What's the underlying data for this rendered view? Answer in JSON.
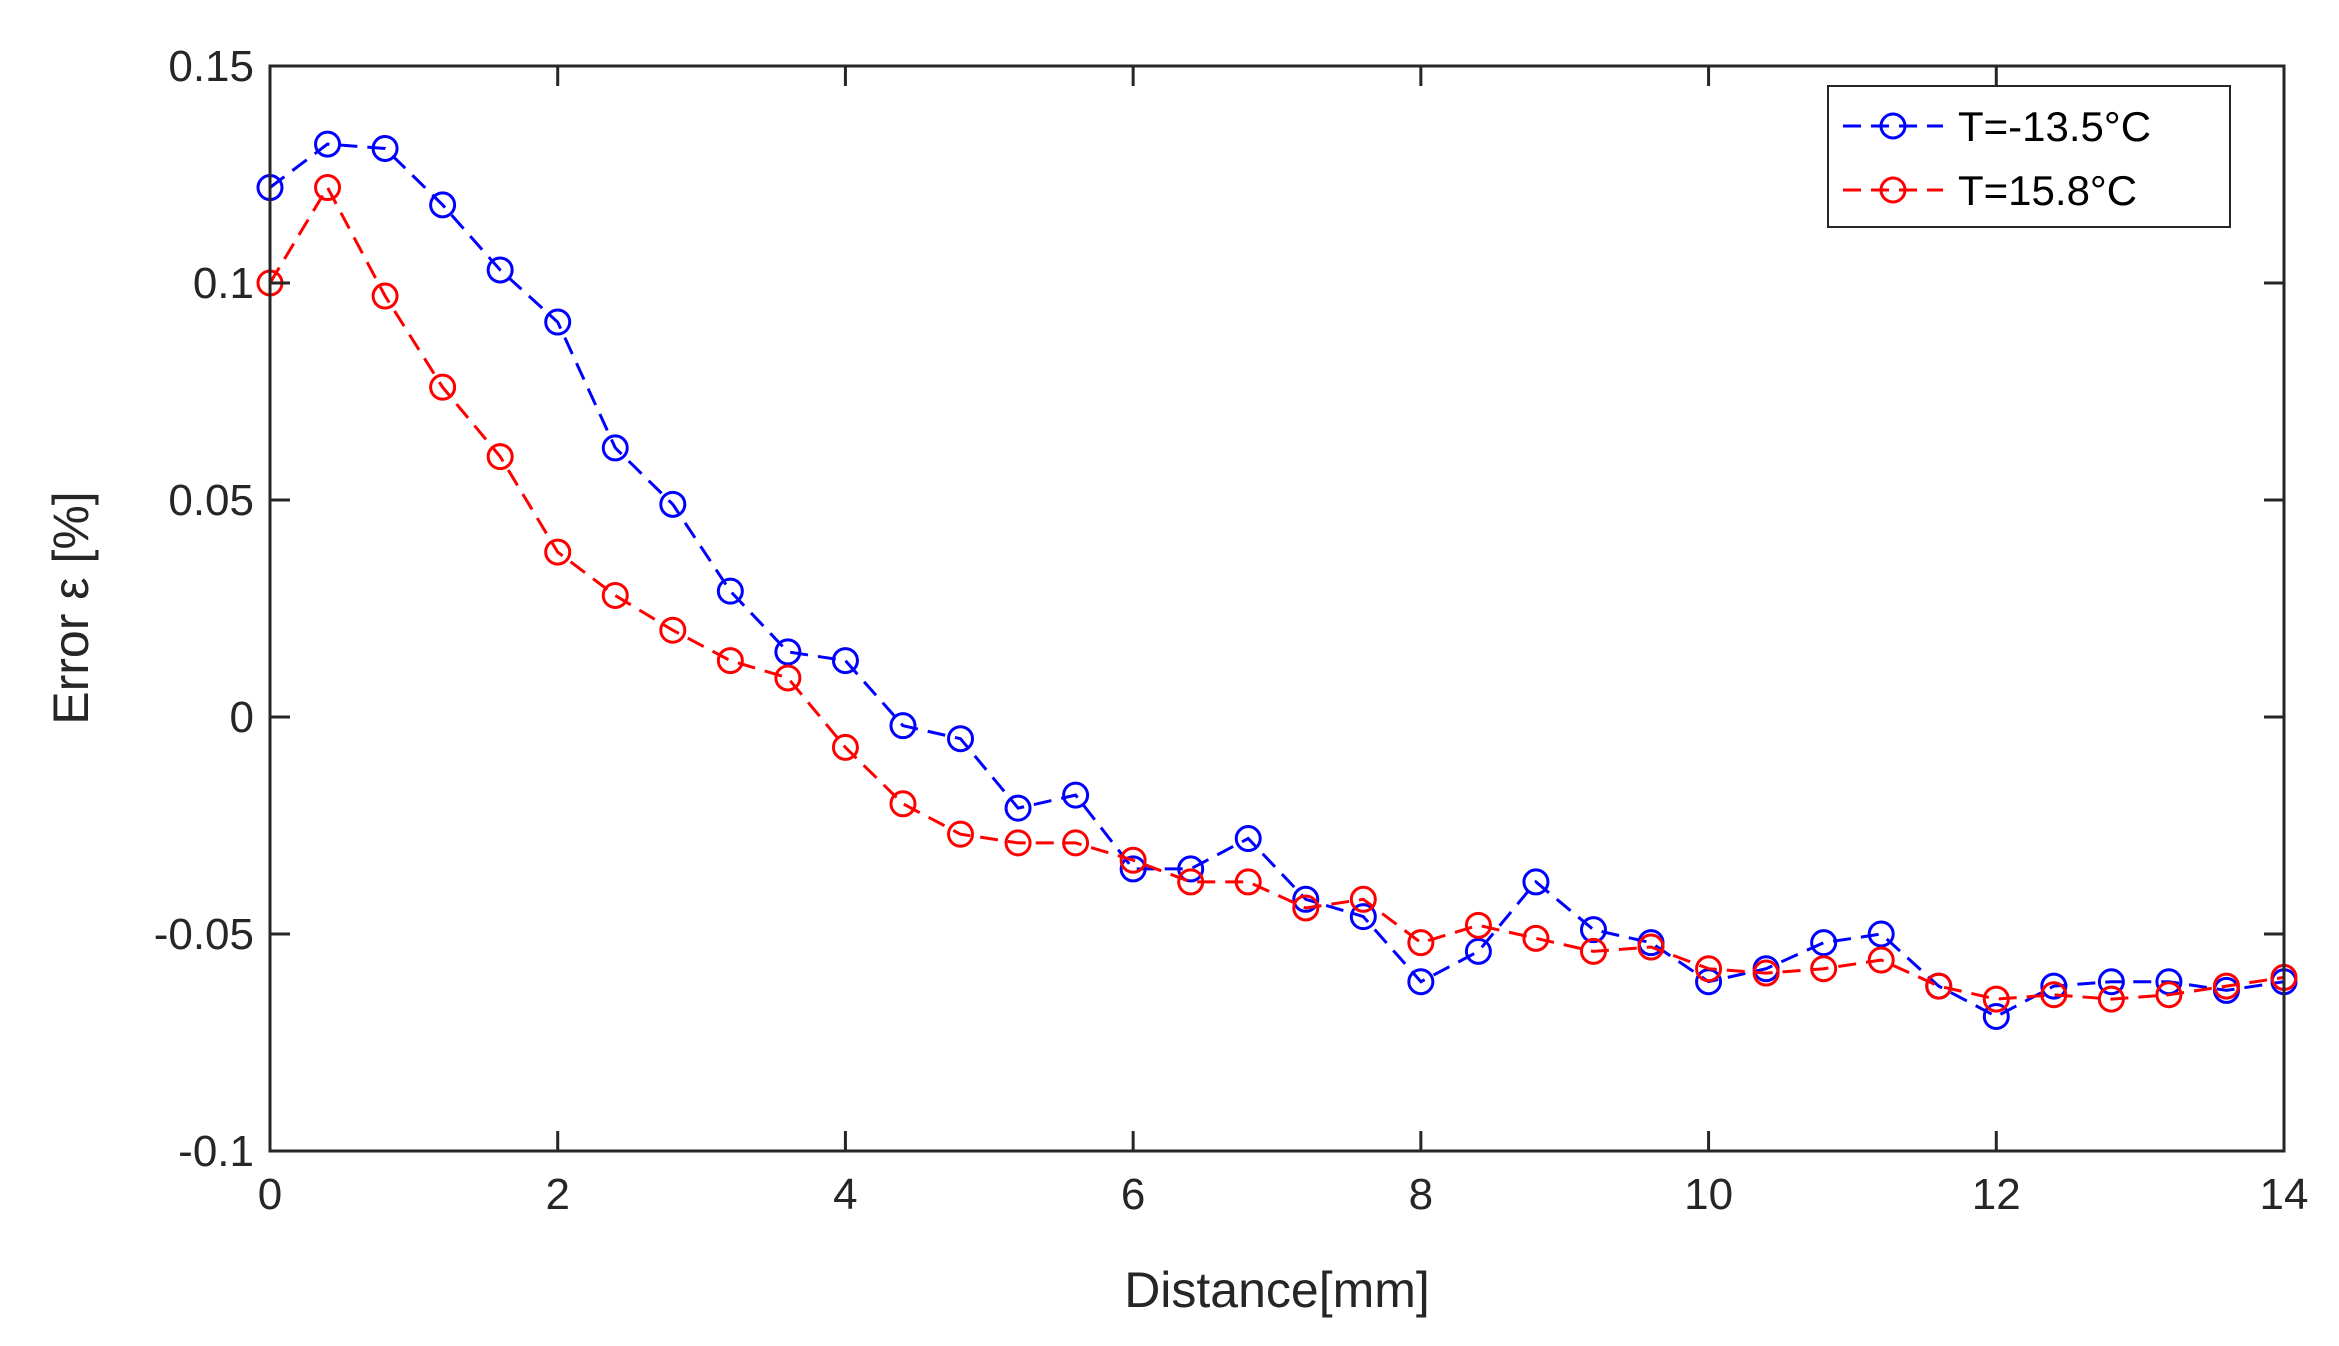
{
  "chart_data": {
    "type": "line",
    "title": "",
    "xlabel": "Distance[mm]",
    "ylabel": "Error ε [%]",
    "xlim": [
      0,
      14
    ],
    "ylim": [
      -0.1,
      0.15
    ],
    "xticks": [
      0,
      2,
      4,
      6,
      8,
      10,
      12,
      14
    ],
    "xtick_labels": [
      "0",
      "2",
      "4",
      "6",
      "8",
      "10",
      "12",
      "14"
    ],
    "yticks": [
      -0.1,
      -0.05,
      0,
      0.05,
      0.1,
      0.15
    ],
    "ytick_labels": [
      "-0.1",
      "-0.05",
      "0",
      "0.05",
      "0.1",
      "0.15"
    ],
    "grid": false,
    "legend_position": "top-right",
    "x": [
      0,
      0.4,
      0.8,
      1.2,
      1.6,
      2.0,
      2.4,
      2.8,
      3.2,
      3.6,
      4.0,
      4.4,
      4.8,
      5.2,
      5.6,
      6.0,
      6.4,
      6.8,
      7.2,
      7.6,
      8.0,
      8.4,
      8.8,
      9.2,
      9.6,
      10.0,
      10.4,
      10.8,
      11.2,
      11.6,
      12.0,
      12.4,
      12.8,
      13.2,
      13.6,
      14.0
    ],
    "series": [
      {
        "name": "T=-13.5°C",
        "color": "#0000ff",
        "line_style": "dashed",
        "marker": "circle",
        "values": [
          0.122,
          0.132,
          0.131,
          0.118,
          0.103,
          0.091,
          0.062,
          0.049,
          0.029,
          0.015,
          0.013,
          -0.002,
          -0.005,
          -0.021,
          -0.018,
          -0.035,
          -0.035,
          -0.028,
          -0.042,
          -0.046,
          -0.061,
          -0.054,
          -0.038,
          -0.049,
          -0.052,
          -0.061,
          -0.058,
          -0.052,
          -0.05,
          -0.062,
          -0.069,
          -0.062,
          -0.061,
          -0.061,
          -0.063,
          -0.061
        ]
      },
      {
        "name": "T=15.8°C",
        "color": "#ff0000",
        "line_style": "dashed",
        "marker": "circle",
        "values": [
          0.1,
          0.122,
          0.097,
          0.076,
          0.06,
          0.038,
          0.028,
          0.02,
          0.013,
          0.009,
          -0.007,
          -0.02,
          -0.027,
          -0.029,
          -0.029,
          -0.033,
          -0.038,
          -0.038,
          -0.044,
          -0.042,
          -0.052,
          -0.048,
          -0.051,
          -0.054,
          -0.053,
          -0.058,
          -0.059,
          -0.058,
          -0.056,
          -0.062,
          -0.065,
          -0.064,
          -0.065,
          -0.064,
          -0.062,
          -0.06
        ]
      }
    ]
  }
}
